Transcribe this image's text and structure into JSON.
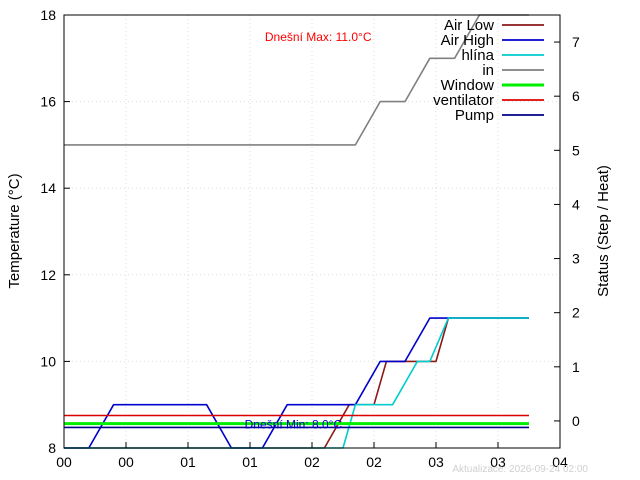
{
  "chart_data": {
    "type": "line",
    "ylabel": "Temperature (°C)",
    "y2label": "Status (Step / Heat)",
    "ylim": [
      8,
      18
    ],
    "y2lim": [
      -0.5,
      7.5
    ],
    "yticks": [
      8,
      10,
      12,
      14,
      16,
      18
    ],
    "y2ticks": [
      0,
      1,
      2,
      3,
      4,
      5,
      6,
      7
    ],
    "xlim": [
      0,
      4
    ],
    "xtick_positions": [
      0,
      0.5,
      1.0,
      1.5,
      2.0,
      2.5,
      3.0,
      3.5,
      4.0
    ],
    "xtick_labels": [
      "00",
      "00",
      "01",
      "01",
      "02",
      "02",
      "03",
      "03",
      "04"
    ],
    "grid": true,
    "legend_position": "top-right",
    "series": [
      {
        "name": "Air Low",
        "color": "#8b1a1a",
        "axis": "y",
        "x": [
          0,
          0.1,
          0.3,
          1.0,
          1.1,
          1.3,
          1.5,
          1.6,
          2.0,
          2.1,
          2.3,
          2.5,
          2.6,
          3.0,
          3.1,
          3.75
        ],
        "y": [
          7.6,
          7.6,
          8.0,
          8.0,
          8.0,
          7.6,
          7.6,
          8.0,
          8.0,
          8.0,
          9.0,
          9.0,
          10.0,
          10.0,
          11.0,
          11.0
        ]
      },
      {
        "name": "Air High",
        "color": "#0000cc",
        "axis": "y",
        "x": [
          0,
          0.2,
          0.4,
          1.15,
          1.35,
          1.6,
          1.8,
          2.35,
          2.55,
          2.75,
          2.95,
          3.1,
          3.75
        ],
        "y": [
          8.0,
          8.0,
          9.0,
          9.0,
          8.0,
          8.0,
          9.0,
          9.0,
          10.0,
          10.0,
          11.0,
          11.0,
          11.0
        ]
      },
      {
        "name": "hlína",
        "color": "#00cccc",
        "axis": "y",
        "x": [
          0,
          2.25,
          2.35,
          2.65,
          2.85,
          2.95,
          3.1,
          3.75
        ],
        "y": [
          7.9,
          7.9,
          9.0,
          9.0,
          10.0,
          10.0,
          11.0,
          11.0
        ]
      },
      {
        "name": "in",
        "color": "#808080",
        "axis": "y",
        "x": [
          0,
          2.35,
          2.55,
          2.75,
          2.95,
          3.15,
          3.35,
          3.75
        ],
        "y": [
          15.0,
          15.0,
          16.0,
          16.0,
          17.0,
          17.0,
          18.0,
          18.0
        ]
      },
      {
        "name": "Window",
        "color": "#00ee00",
        "axis": "y2",
        "width": 3,
        "x": [
          0,
          3.75
        ],
        "y": [
          -0.05,
          -0.05
        ]
      },
      {
        "name": "ventilator",
        "color": "#dd0000",
        "axis": "y2",
        "x": [
          0,
          3.75
        ],
        "y": [
          0.1,
          0.1
        ]
      },
      {
        "name": "Pump",
        "color": "#000088",
        "axis": "y2",
        "x": [
          0,
          3.75
        ],
        "y": [
          -0.12,
          -0.12
        ]
      }
    ],
    "annotations": [
      {
        "text": "Dnešní Max: 11.0°C",
        "color": "#ff0000",
        "x": 2.05,
        "y": 17.4
      },
      {
        "text": "Dnešní Min: 8.0°C",
        "color": "#0000cc",
        "x": 1.85,
        "y": 8.45
      }
    ],
    "footer": "Aktualizace: 2026-09-24 02:00"
  }
}
